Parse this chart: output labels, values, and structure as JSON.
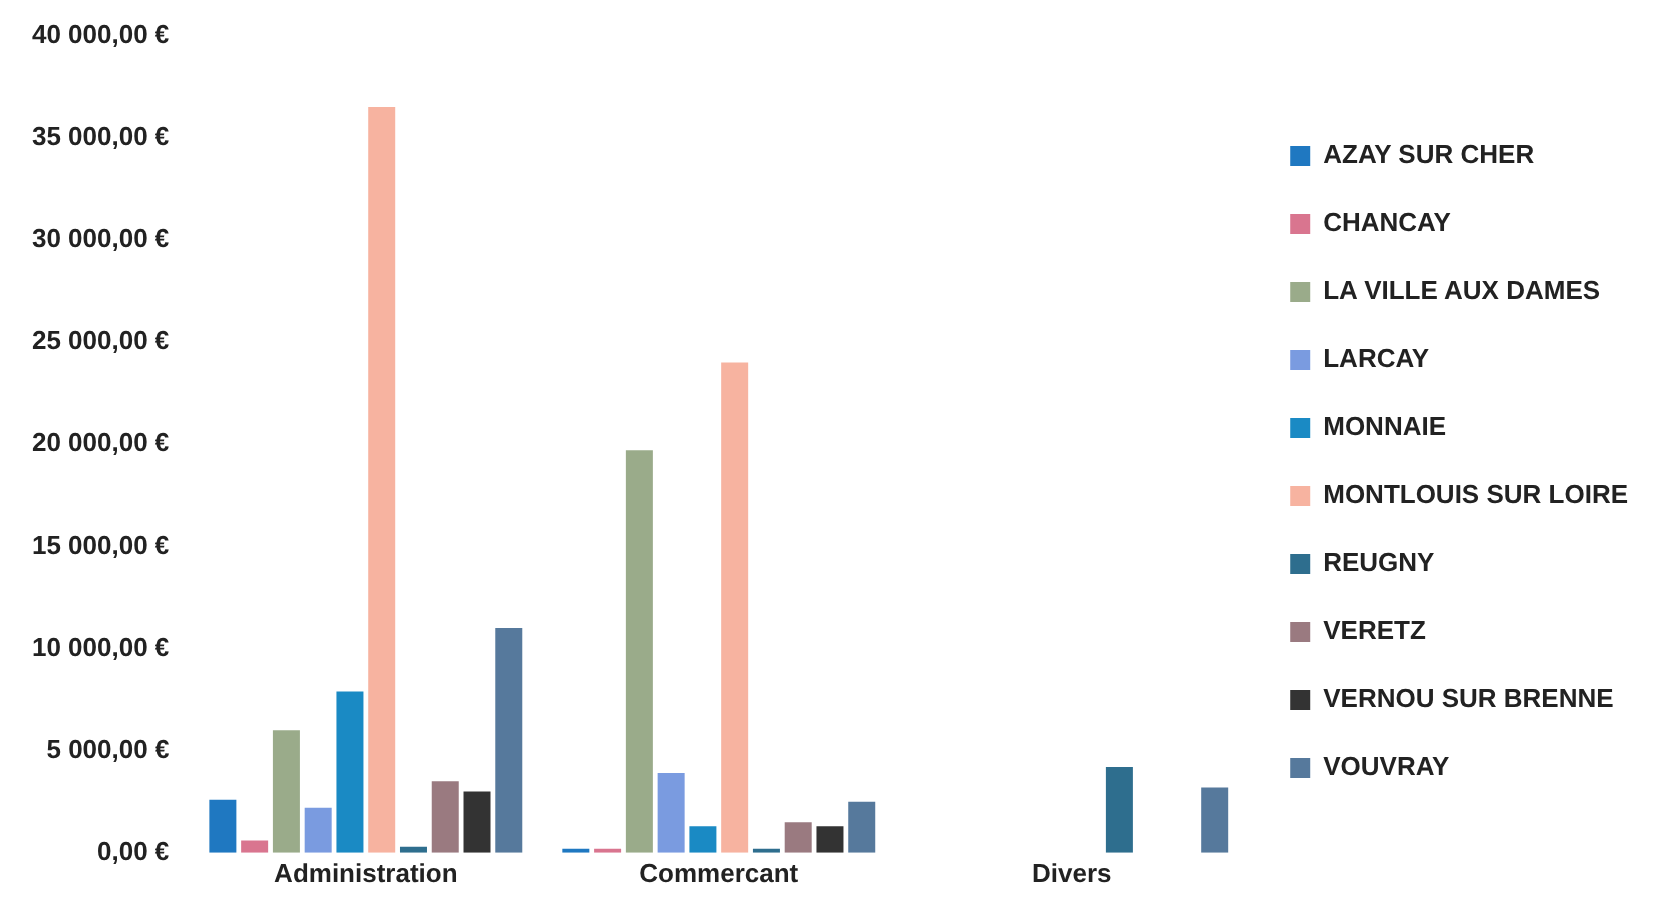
{
  "chart_data": {
    "type": "bar",
    "categories": [
      "Administration",
      "Commercant",
      "Divers"
    ],
    "series": [
      {
        "name": "AZAY SUR CHER",
        "color": "#1f78c1",
        "values": [
          2600,
          200,
          null
        ]
      },
      {
        "name": "CHANCAY",
        "color": "#d9758f",
        "values": [
          600,
          200,
          null
        ]
      },
      {
        "name": "LA VILLE AUX DAMES",
        "color": "#9aab8a",
        "values": [
          6000,
          19700,
          null
        ]
      },
      {
        "name": "LARCAY",
        "color": "#7a9be0",
        "values": [
          2200,
          3900,
          null
        ]
      },
      {
        "name": "MONNAIE",
        "color": "#1a8ac4",
        "values": [
          7900,
          1300,
          null
        ]
      },
      {
        "name": "MONTLOUIS SUR LOIRE",
        "color": "#f7b3a0",
        "values": [
          36500,
          24000,
          null
        ]
      },
      {
        "name": "REUGNY",
        "color": "#2e6e8e",
        "values": [
          300,
          200,
          4200
        ]
      },
      {
        "name": "VERETZ",
        "color": "#9a7a80",
        "values": [
          3500,
          1500,
          null
        ]
      },
      {
        "name": "VERNOU SUR BRENNE",
        "color": "#333333",
        "values": [
          3000,
          1300,
          null
        ]
      },
      {
        "name": "VOUVRAY",
        "color": "#56799c",
        "values": [
          11000,
          2500,
          3200
        ]
      }
    ],
    "ylim": [
      0,
      40000
    ],
    "yticks": [
      {
        "value": 0,
        "label": "0,00 €"
      },
      {
        "value": 5000,
        "label": "5 000,00 €"
      },
      {
        "value": 10000,
        "label": "10 000,00 €"
      },
      {
        "value": 15000,
        "label": "15 000,00 €"
      },
      {
        "value": 20000,
        "label": "20 000,00 €"
      },
      {
        "value": 25000,
        "label": "25 000,00 €"
      },
      {
        "value": 30000,
        "label": "30 000,00 €"
      },
      {
        "value": 35000,
        "label": "35 000,00 €"
      },
      {
        "value": 40000,
        "label": "40 000,00 €"
      }
    ],
    "grid": false,
    "legend": "right"
  }
}
